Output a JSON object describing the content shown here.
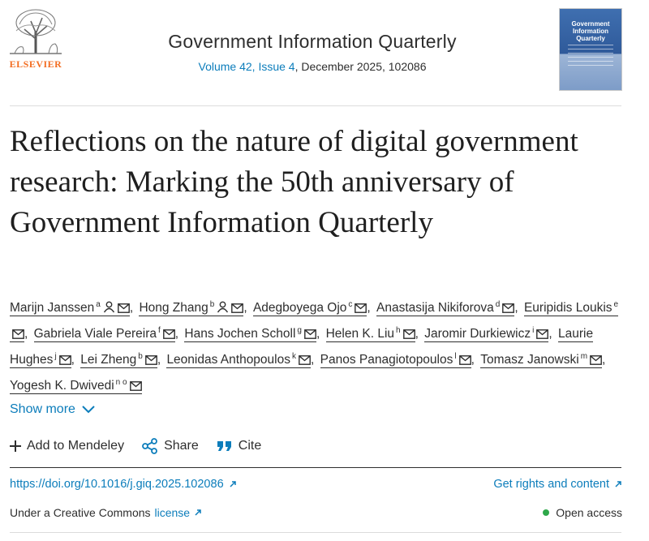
{
  "publisher": {
    "name": "ELSEVIER"
  },
  "journal": {
    "title": "Government Information Quarterly",
    "volume_issue": "Volume 42, Issue 4",
    "date_article": ", December 2025, 102086",
    "cover_text": "Government Information Quarterly"
  },
  "article": {
    "title": "Reflections on the nature of digital government research: Marking the 50th anniversary of Government Information Quarterly"
  },
  "authors": [
    {
      "name": "Marijn Janssen",
      "aff": "a",
      "person": true
    },
    {
      "name": "Hong Zhang",
      "aff": "b",
      "person": true
    },
    {
      "name": "Adegboyega Ojo",
      "aff": "c",
      "person": false
    },
    {
      "name": "Anastasija Nikiforova",
      "aff": "d",
      "person": false
    },
    {
      "name": "Euripidis Loukis",
      "aff": "e",
      "person": false
    },
    {
      "name": "Gabriela Viale Pereira",
      "aff": "f",
      "person": false
    },
    {
      "name": "Hans Jochen Scholl",
      "aff": "g",
      "person": false
    },
    {
      "name": "Helen K. Liu",
      "aff": "h",
      "person": false
    },
    {
      "name": "Jaromir Durkiewicz",
      "aff": "i",
      "person": false
    },
    {
      "name": "Laurie Hughes",
      "aff": "j",
      "person": false
    },
    {
      "name": "Lei Zheng",
      "aff": "b",
      "person": false
    },
    {
      "name": "Leonidas Anthopoulos",
      "aff": "k",
      "person": false
    },
    {
      "name": "Panos Panagiotopoulos",
      "aff": "l",
      "person": false
    },
    {
      "name": "Tomasz Janowski",
      "aff": "m",
      "person": false
    },
    {
      "name": "Yogesh K. Dwivedi",
      "aff": "n o",
      "person": false
    }
  ],
  "show_more": {
    "label": "Show more"
  },
  "actions": {
    "mendeley": "Add to Mendeley",
    "share": "Share",
    "cite": "Cite"
  },
  "links": {
    "doi": "https://doi.org/10.1016/j.giq.2025.102086",
    "rights": "Get rights and content"
  },
  "license": {
    "prefix": "Under a Creative Commons",
    "link": "license"
  },
  "access": {
    "label": "Open access"
  },
  "colors": {
    "link": "#0c7dbb",
    "brand": "#f36d21",
    "open_access": "#2ea84a"
  }
}
